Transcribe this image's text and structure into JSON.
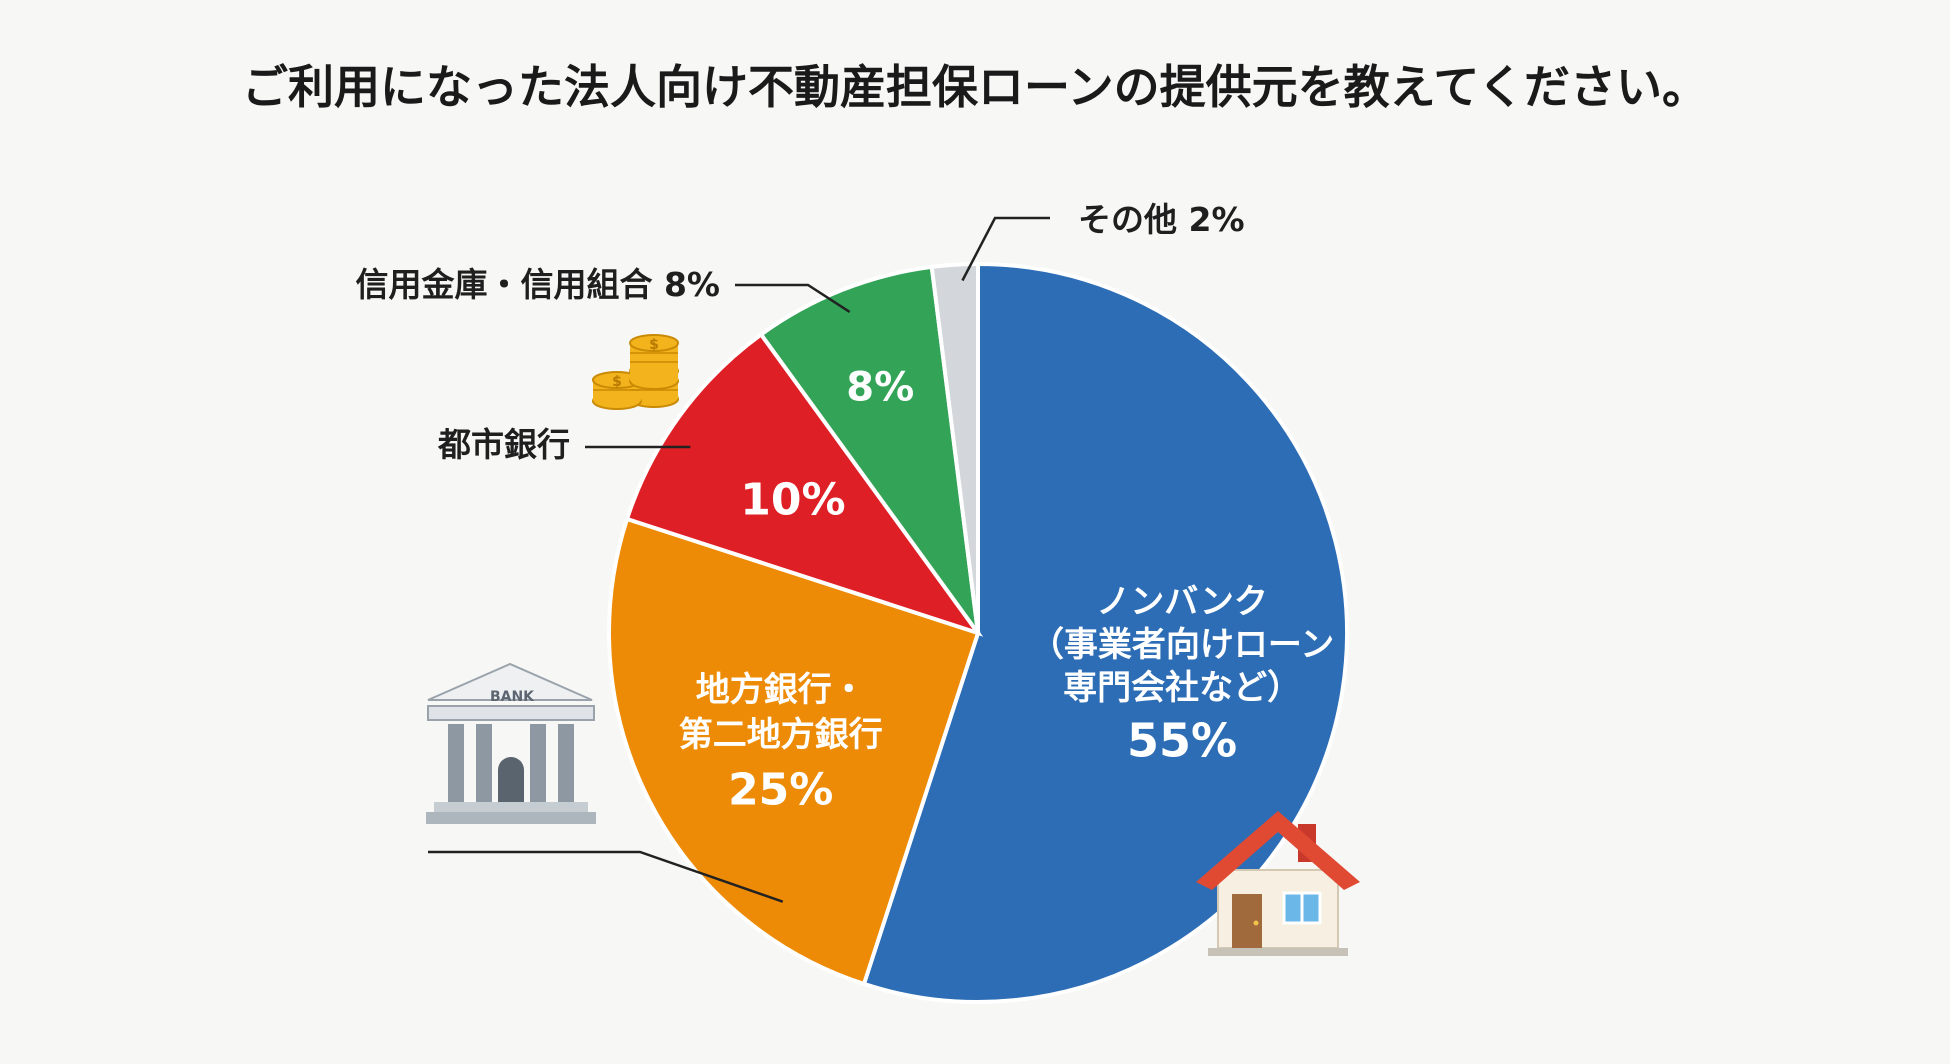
{
  "title": "ご利用になった法人向け不動産担保ローンの提供元を教えてください。",
  "chart_data": {
    "type": "pie",
    "title": "ご利用になった法人向け不動産担保ローンの提供元を教えてください。",
    "slices": [
      {
        "key": "nonbank",
        "value": 55,
        "color": "#2c6db6",
        "inside_lines": [
          "ノンバンク",
          "（事業者向けローン",
          "専門会社など）"
        ],
        "inside_value": "55%",
        "outside_label": ""
      },
      {
        "key": "regional",
        "value": 25,
        "color": "#ee8b06",
        "inside_lines": [
          "地方銀行・",
          "第二地方銀行"
        ],
        "inside_value": "25%",
        "outside_label": ""
      },
      {
        "key": "city",
        "value": 10,
        "color": "#df1f26",
        "inside_lines": [],
        "inside_value": "10%",
        "outside_label": "都市銀行"
      },
      {
        "key": "credit",
        "value": 8,
        "color": "#33a457",
        "inside_lines": [],
        "inside_value": "8%",
        "outside_label": "信用金庫・信用組合 8%"
      },
      {
        "key": "other",
        "value": 2,
        "color": "#d3d6da",
        "inside_lines": [],
        "inside_value": "",
        "outside_label": "その他 2%"
      }
    ]
  },
  "icons": [
    {
      "name": "bank-icon",
      "text": "BANK"
    },
    {
      "name": "coins-icon"
    },
    {
      "name": "house-icon"
    }
  ]
}
